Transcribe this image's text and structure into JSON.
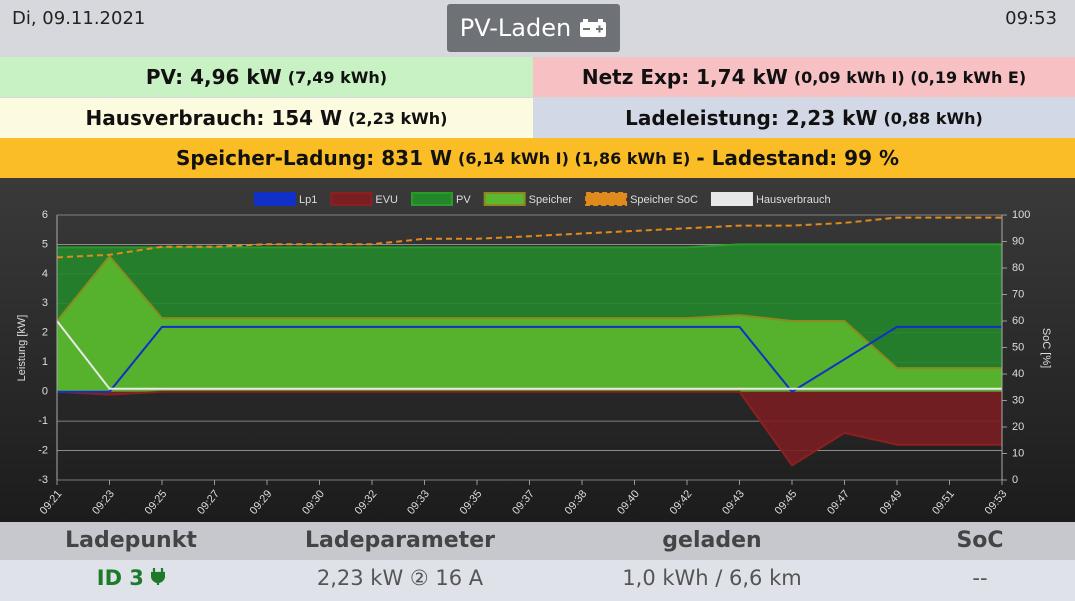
{
  "header": {
    "date": "Di, 09.11.2021",
    "title": "PV-Laden",
    "time": "09:53"
  },
  "info": {
    "pv": {
      "main": "PV: 4,96 kW",
      "detail": "(7,49 kWh)"
    },
    "netz": {
      "main": "Netz Exp: 1,74 kW",
      "detail": "(0,09 kWh I) (0,19 kWh E)"
    },
    "haus": {
      "main": "Hausverbrauch: 154 W",
      "detail": "(2,23 kWh)"
    },
    "lade": {
      "main": "Ladeleistung: 2,23 kW",
      "detail": "(0,88 kWh)"
    },
    "speicher": {
      "main": "Speicher-Ladung: 831 W",
      "detail": "(6,14 kWh I) (1,86 kWh E)",
      "state": "- Ladestand: 99 %"
    }
  },
  "chart_data": {
    "type": "line",
    "categories": [
      "09:21",
      "09:23",
      "09:25",
      "09:27",
      "09:29",
      "09:30",
      "09:32",
      "09:33",
      "09:35",
      "09:37",
      "09:38",
      "09:40",
      "09:42",
      "09:43",
      "09:45",
      "09:47",
      "09:49",
      "09:51",
      "09:53"
    ],
    "y_label": "Leistung [kW]",
    "y2_label": "SoC [%]",
    "ylim": [
      -3,
      6
    ],
    "yticks": [
      -3,
      -2,
      -1,
      0,
      1,
      2,
      3,
      4,
      5,
      6
    ],
    "y2lim": [
      0,
      100
    ],
    "y2ticks": [
      0,
      10,
      20,
      30,
      40,
      50,
      60,
      70,
      80,
      90,
      100
    ],
    "grid": true,
    "series": [
      {
        "name": "Lp1",
        "color": "#1030c8",
        "values": [
          0,
          0,
          2.2,
          2.2,
          2.2,
          2.2,
          2.2,
          2.2,
          2.2,
          2.2,
          2.2,
          2.2,
          2.2,
          2.2,
          0,
          1.1,
          2.2,
          2.2,
          2.2
        ]
      },
      {
        "name": "EVU",
        "color": "#8b2020",
        "fill": "#7a1e22",
        "values": [
          0,
          -0.1,
          0,
          0,
          0,
          0,
          0,
          0,
          0,
          0,
          0,
          0,
          0,
          0,
          -2.5,
          -1.4,
          -1.8,
          -1.8,
          -1.8
        ]
      },
      {
        "name": "PV",
        "color": "#2a9a2a",
        "fill": "#23862a",
        "values": [
          4.9,
          4.9,
          4.9,
          4.9,
          4.9,
          4.9,
          4.9,
          4.9,
          4.9,
          4.9,
          4.9,
          4.9,
          4.9,
          5.0,
          5.0,
          5.0,
          5.0,
          5.0,
          5.0
        ]
      },
      {
        "name": "Speicher",
        "color": "#8a8a20",
        "fill": "#5cb82e",
        "values": [
          2.4,
          4.6,
          2.5,
          2.5,
          2.5,
          2.5,
          2.5,
          2.5,
          2.5,
          2.5,
          2.5,
          2.5,
          2.5,
          2.6,
          2.4,
          2.4,
          0.8,
          0.8,
          0.8
        ]
      },
      {
        "name": "Speicher SoC",
        "color": "#e08a1e",
        "dashed": true,
        "axis": "y2",
        "values": [
          84,
          85,
          88,
          88,
          89,
          89,
          89,
          91,
          91,
          92,
          93,
          94,
          95,
          96,
          96,
          97,
          99,
          99,
          99
        ]
      },
      {
        "name": "Hausverbrauch",
        "color": "#e8e8e8",
        "values": [
          2.4,
          0.1,
          0.1,
          0.1,
          0.1,
          0.1,
          0.1,
          0.1,
          0.1,
          0.1,
          0.1,
          0.1,
          0.1,
          0.1,
          0.1,
          0.1,
          0.1,
          0.1,
          0.1
        ]
      }
    ]
  },
  "table": {
    "headers": [
      "Ladepunkt",
      "Ladeparameter",
      "geladen",
      "SoC"
    ],
    "rows": [
      [
        "ID 3",
        "2,23 kW ② 16 A",
        "1,0 kWh / 6,6 km",
        "--"
      ]
    ]
  }
}
